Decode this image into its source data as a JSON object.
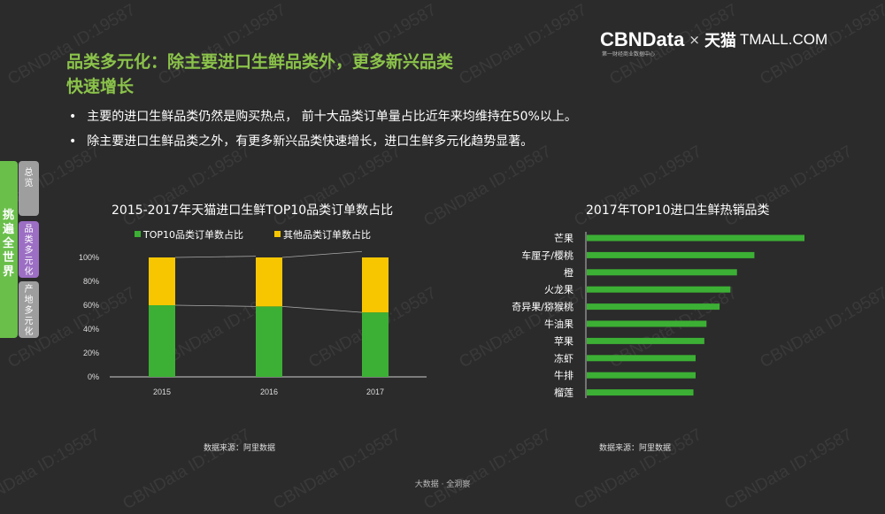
{
  "watermark": "CBNData ID:19587",
  "header": {
    "title_line1": "品类多元化：除主要进口生鲜品类外，更多新兴品类",
    "title_line2": "快速增长",
    "brand": {
      "cbndata": "CBNData",
      "times": "×",
      "tianmao": "天猫",
      "tmall": "TMALL.COM",
      "subtitle": "第一财经商业数据中心"
    }
  },
  "bullets": [
    "主要的进口生鲜品类仍然是购买热点， 前十大品类订单量占比近年来均维持在50%以上。",
    "除主要进口生鲜品类之外，有更多新兴品类快速增长，进口生鲜多元化趋势显著。"
  ],
  "sidebar": {
    "main": "挑遍全世界",
    "tabs": [
      {
        "label": "总览",
        "color": "#9e9e9e"
      },
      {
        "label": "品类多元化",
        "color": "#9c6fc4"
      },
      {
        "label": "产地多元化",
        "color": "#9e9e9e"
      }
    ]
  },
  "colors": {
    "green": "#3cb034",
    "yellow": "#f7c600",
    "accent": "#8bc34a"
  },
  "chart_data": [
    {
      "type": "bar",
      "stacked": true,
      "title": "2015-2017年天猫进口生鲜TOP10品类订单数占比",
      "categories": [
        "2015",
        "2016",
        "2017"
      ],
      "series": [
        {
          "name": "TOP10品类订单数占比",
          "values": [
            60,
            59,
            54
          ],
          "color": "#3cb034"
        },
        {
          "name": "其他品类订单数占比",
          "values": [
            40,
            41,
            46
          ],
          "color": "#f7c600"
        }
      ],
      "yticks": [
        "0%",
        "20%",
        "40%",
        "60%",
        "80%",
        "100%"
      ],
      "ylim": [
        0,
        100
      ],
      "legend": "top",
      "source": "数据来源：阿里数据"
    },
    {
      "type": "bar",
      "orientation": "horizontal",
      "title": "2017年TOP10进口生鲜热销品类",
      "categories": [
        "芒果",
        "车厘子/樱桃",
        "橙",
        "火龙果",
        "奇异果/猕猴桃",
        "牛油果",
        "苹果",
        "冻虾",
        "牛排",
        "榴莲"
      ],
      "values": [
        100,
        77,
        69,
        66,
        61,
        55,
        54,
        50,
        50,
        49
      ],
      "color": "#3cb034",
      "source": "数据来源：阿里数据"
    }
  ],
  "footer": "大数据 · 全洞察"
}
